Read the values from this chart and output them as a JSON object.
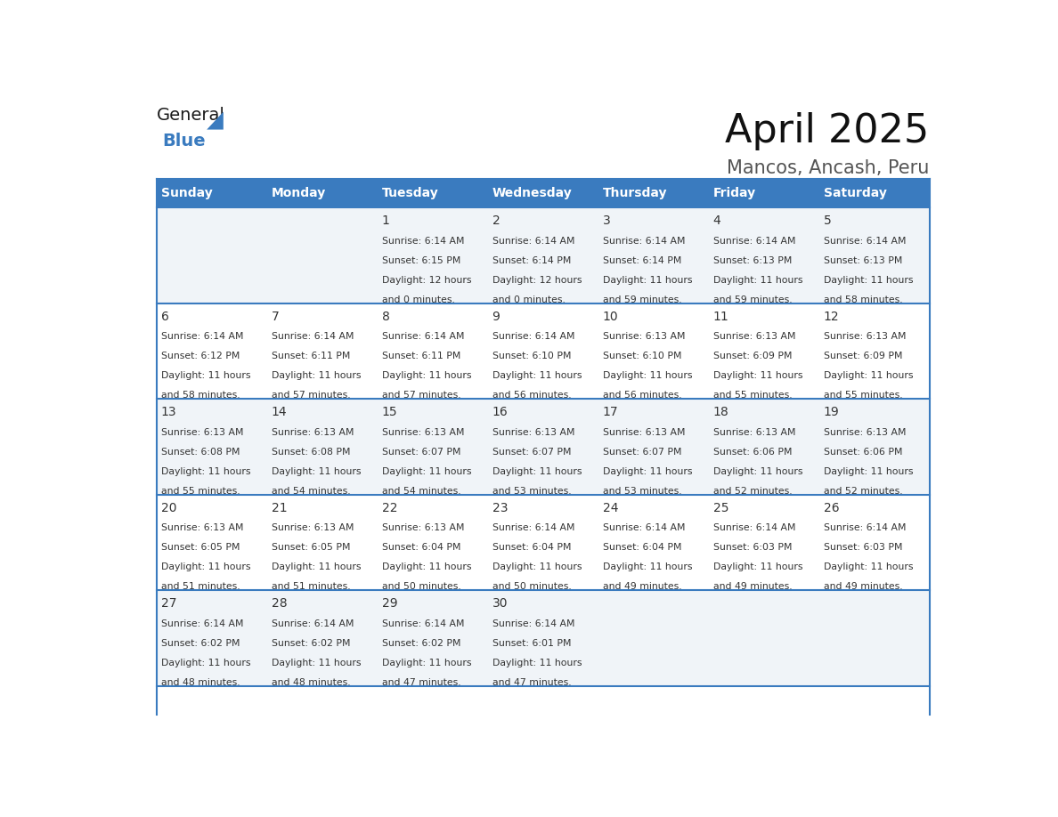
{
  "title": "April 2025",
  "subtitle": "Mancos, Ancash, Peru",
  "header_bg": "#3a7bbf",
  "header_text": "#ffffff",
  "row_bg_light": "#f0f4f8",
  "row_bg_white": "#ffffff",
  "border_color": "#3a7bbf",
  "text_color": "#333333",
  "day_names": [
    "Sunday",
    "Monday",
    "Tuesday",
    "Wednesday",
    "Thursday",
    "Friday",
    "Saturday"
  ],
  "days": [
    {
      "date": 1,
      "col": 2,
      "row": 0,
      "sunrise": "6:14 AM",
      "sunset": "6:15 PM",
      "daylight": "12 hours",
      "daylight2": "and 0 minutes."
    },
    {
      "date": 2,
      "col": 3,
      "row": 0,
      "sunrise": "6:14 AM",
      "sunset": "6:14 PM",
      "daylight": "12 hours",
      "daylight2": "and 0 minutes."
    },
    {
      "date": 3,
      "col": 4,
      "row": 0,
      "sunrise": "6:14 AM",
      "sunset": "6:14 PM",
      "daylight": "11 hours",
      "daylight2": "and 59 minutes."
    },
    {
      "date": 4,
      "col": 5,
      "row": 0,
      "sunrise": "6:14 AM",
      "sunset": "6:13 PM",
      "daylight": "11 hours",
      "daylight2": "and 59 minutes."
    },
    {
      "date": 5,
      "col": 6,
      "row": 0,
      "sunrise": "6:14 AM",
      "sunset": "6:13 PM",
      "daylight": "11 hours",
      "daylight2": "and 58 minutes."
    },
    {
      "date": 6,
      "col": 0,
      "row": 1,
      "sunrise": "6:14 AM",
      "sunset": "6:12 PM",
      "daylight": "11 hours",
      "daylight2": "and 58 minutes."
    },
    {
      "date": 7,
      "col": 1,
      "row": 1,
      "sunrise": "6:14 AM",
      "sunset": "6:11 PM",
      "daylight": "11 hours",
      "daylight2": "and 57 minutes."
    },
    {
      "date": 8,
      "col": 2,
      "row": 1,
      "sunrise": "6:14 AM",
      "sunset": "6:11 PM",
      "daylight": "11 hours",
      "daylight2": "and 57 minutes."
    },
    {
      "date": 9,
      "col": 3,
      "row": 1,
      "sunrise": "6:14 AM",
      "sunset": "6:10 PM",
      "daylight": "11 hours",
      "daylight2": "and 56 minutes."
    },
    {
      "date": 10,
      "col": 4,
      "row": 1,
      "sunrise": "6:13 AM",
      "sunset": "6:10 PM",
      "daylight": "11 hours",
      "daylight2": "and 56 minutes."
    },
    {
      "date": 11,
      "col": 5,
      "row": 1,
      "sunrise": "6:13 AM",
      "sunset": "6:09 PM",
      "daylight": "11 hours",
      "daylight2": "and 55 minutes."
    },
    {
      "date": 12,
      "col": 6,
      "row": 1,
      "sunrise": "6:13 AM",
      "sunset": "6:09 PM",
      "daylight": "11 hours",
      "daylight2": "and 55 minutes."
    },
    {
      "date": 13,
      "col": 0,
      "row": 2,
      "sunrise": "6:13 AM",
      "sunset": "6:08 PM",
      "daylight": "11 hours",
      "daylight2": "and 55 minutes."
    },
    {
      "date": 14,
      "col": 1,
      "row": 2,
      "sunrise": "6:13 AM",
      "sunset": "6:08 PM",
      "daylight": "11 hours",
      "daylight2": "and 54 minutes."
    },
    {
      "date": 15,
      "col": 2,
      "row": 2,
      "sunrise": "6:13 AM",
      "sunset": "6:07 PM",
      "daylight": "11 hours",
      "daylight2": "and 54 minutes."
    },
    {
      "date": 16,
      "col": 3,
      "row": 2,
      "sunrise": "6:13 AM",
      "sunset": "6:07 PM",
      "daylight": "11 hours",
      "daylight2": "and 53 minutes."
    },
    {
      "date": 17,
      "col": 4,
      "row": 2,
      "sunrise": "6:13 AM",
      "sunset": "6:07 PM",
      "daylight": "11 hours",
      "daylight2": "and 53 minutes."
    },
    {
      "date": 18,
      "col": 5,
      "row": 2,
      "sunrise": "6:13 AM",
      "sunset": "6:06 PM",
      "daylight": "11 hours",
      "daylight2": "and 52 minutes."
    },
    {
      "date": 19,
      "col": 6,
      "row": 2,
      "sunrise": "6:13 AM",
      "sunset": "6:06 PM",
      "daylight": "11 hours",
      "daylight2": "and 52 minutes."
    },
    {
      "date": 20,
      "col": 0,
      "row": 3,
      "sunrise": "6:13 AM",
      "sunset": "6:05 PM",
      "daylight": "11 hours",
      "daylight2": "and 51 minutes."
    },
    {
      "date": 21,
      "col": 1,
      "row": 3,
      "sunrise": "6:13 AM",
      "sunset": "6:05 PM",
      "daylight": "11 hours",
      "daylight2": "and 51 minutes."
    },
    {
      "date": 22,
      "col": 2,
      "row": 3,
      "sunrise": "6:13 AM",
      "sunset": "6:04 PM",
      "daylight": "11 hours",
      "daylight2": "and 50 minutes."
    },
    {
      "date": 23,
      "col": 3,
      "row": 3,
      "sunrise": "6:14 AM",
      "sunset": "6:04 PM",
      "daylight": "11 hours",
      "daylight2": "and 50 minutes."
    },
    {
      "date": 24,
      "col": 4,
      "row": 3,
      "sunrise": "6:14 AM",
      "sunset": "6:04 PM",
      "daylight": "11 hours",
      "daylight2": "and 49 minutes."
    },
    {
      "date": 25,
      "col": 5,
      "row": 3,
      "sunrise": "6:14 AM",
      "sunset": "6:03 PM",
      "daylight": "11 hours",
      "daylight2": "and 49 minutes."
    },
    {
      "date": 26,
      "col": 6,
      "row": 3,
      "sunrise": "6:14 AM",
      "sunset": "6:03 PM",
      "daylight": "11 hours",
      "daylight2": "and 49 minutes."
    },
    {
      "date": 27,
      "col": 0,
      "row": 4,
      "sunrise": "6:14 AM",
      "sunset": "6:02 PM",
      "daylight": "11 hours",
      "daylight2": "and 48 minutes."
    },
    {
      "date": 28,
      "col": 1,
      "row": 4,
      "sunrise": "6:14 AM",
      "sunset": "6:02 PM",
      "daylight": "11 hours",
      "daylight2": "and 48 minutes."
    },
    {
      "date": 29,
      "col": 2,
      "row": 4,
      "sunrise": "6:14 AM",
      "sunset": "6:02 PM",
      "daylight": "11 hours",
      "daylight2": "and 47 minutes."
    },
    {
      "date": 30,
      "col": 3,
      "row": 4,
      "sunrise": "6:14 AM",
      "sunset": "6:01 PM",
      "daylight": "11 hours",
      "daylight2": "and 47 minutes."
    }
  ],
  "logo_text_general": "General",
  "logo_text_blue": "Blue",
  "logo_color_general": "#1a1a1a",
  "logo_color_blue": "#3a7bbf",
  "logo_triangle_color": "#3a7bbf"
}
